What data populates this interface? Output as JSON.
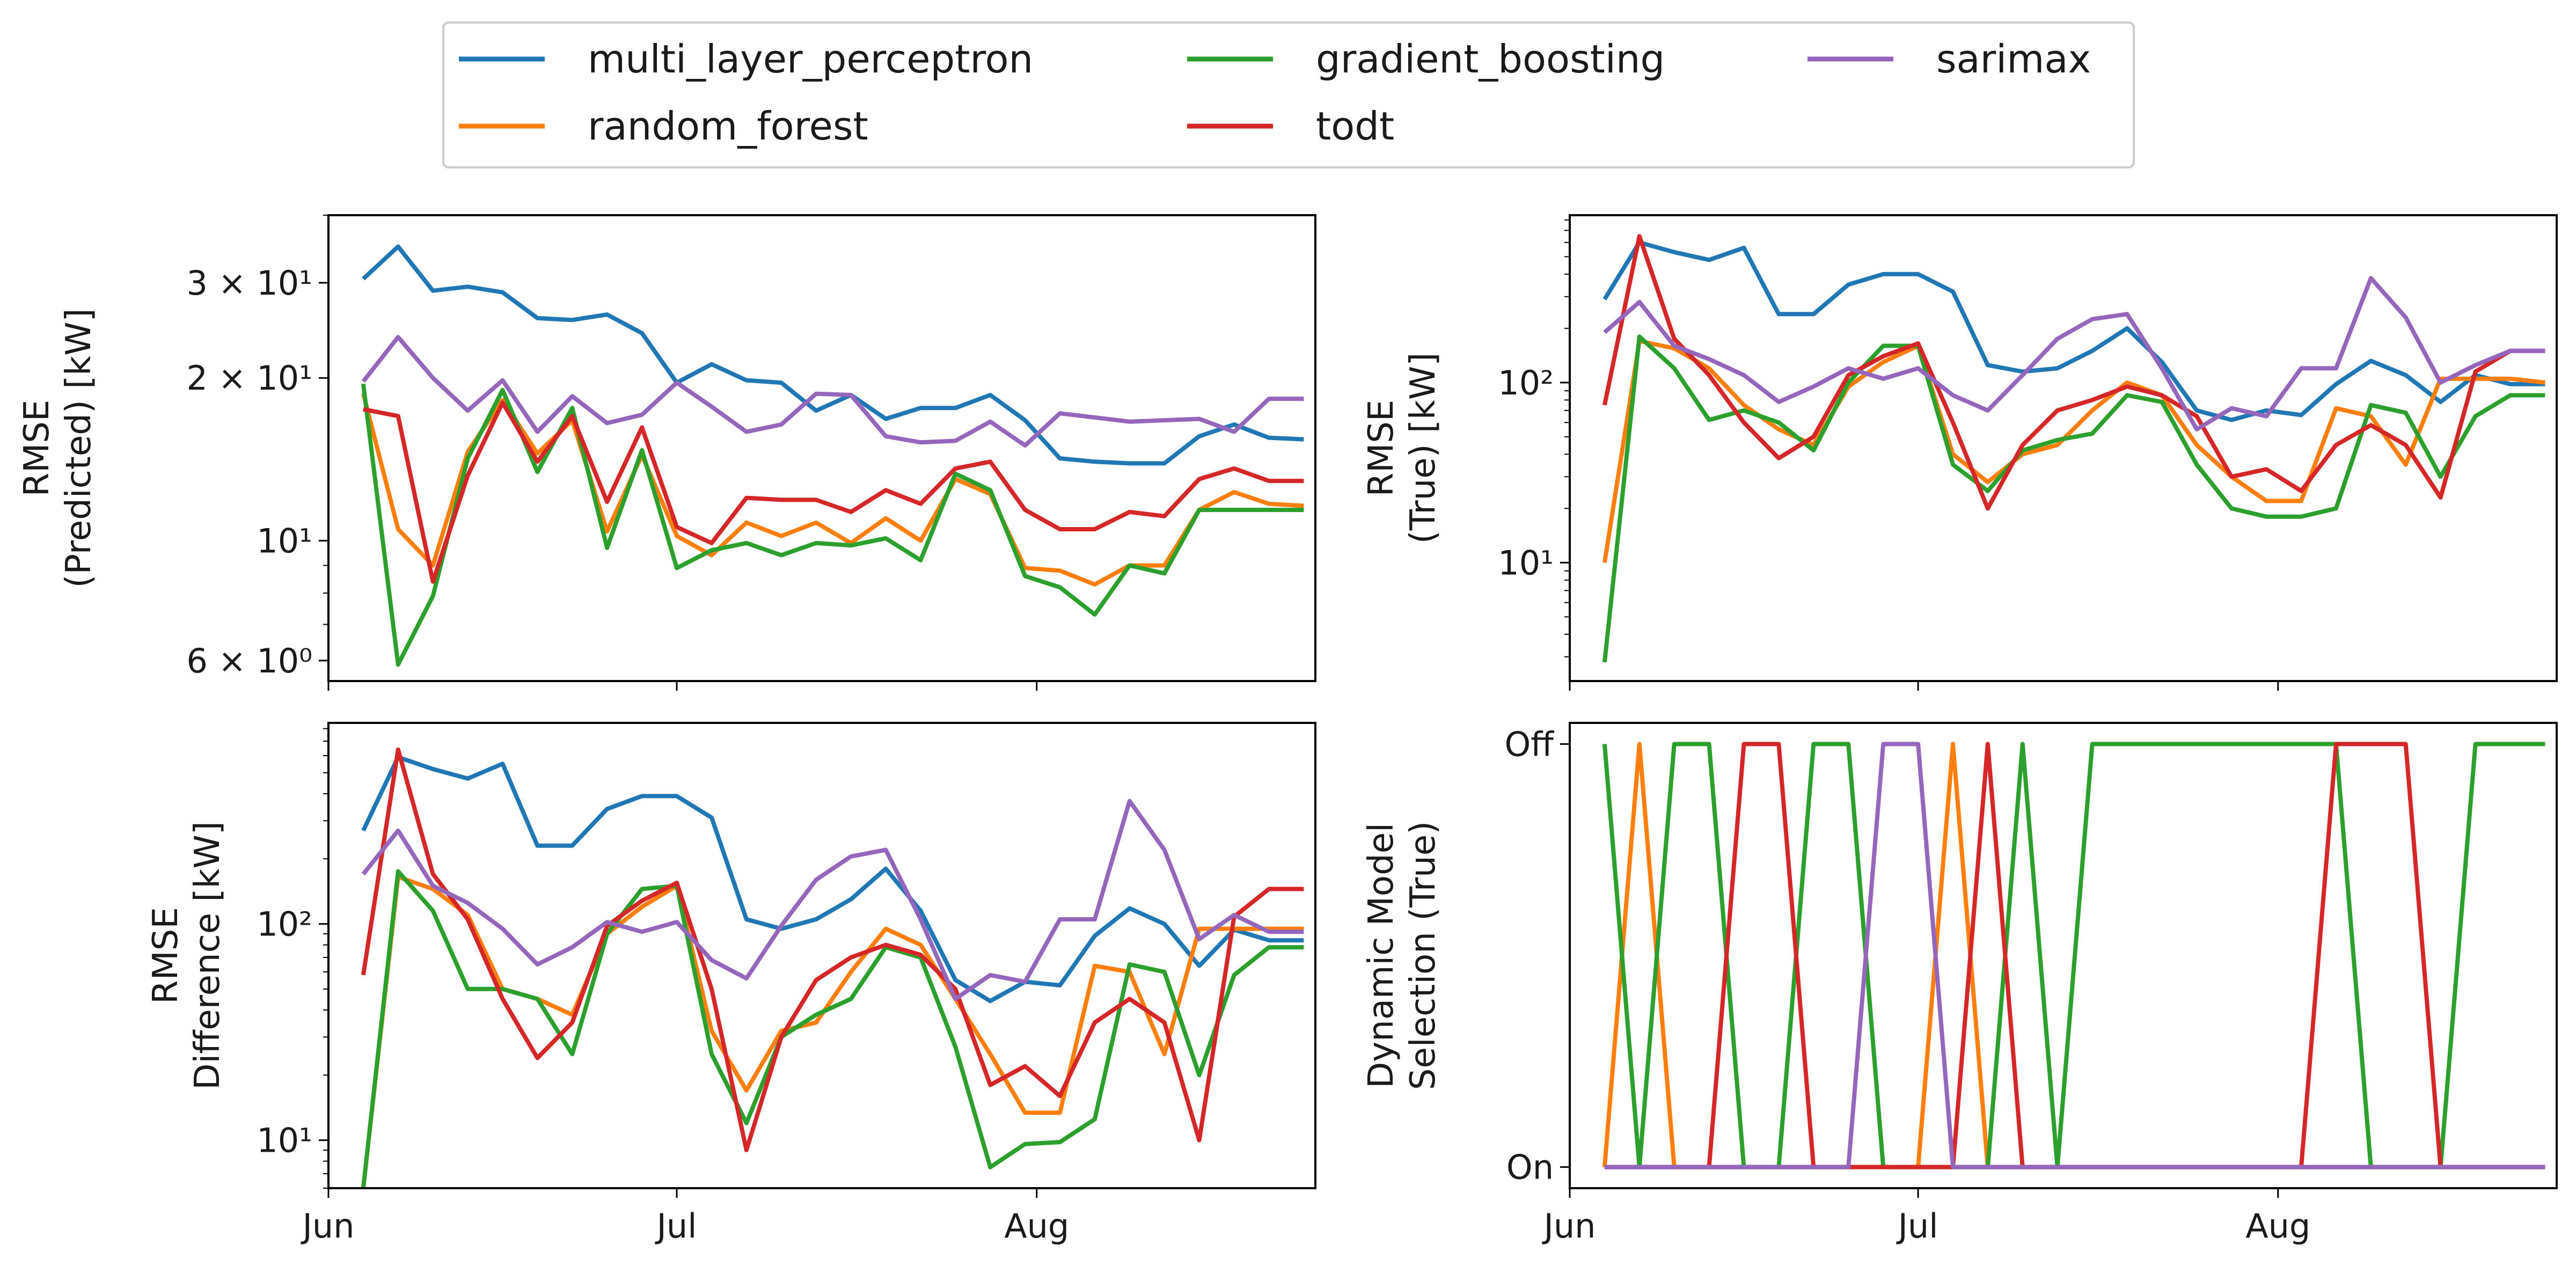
{
  "legend": {
    "entries": [
      {
        "name": "multi_layer_perceptron",
        "color": "#1f77b4"
      },
      {
        "name": "random_forest",
        "color": "#ff7f0e"
      },
      {
        "name": "gradient_boosting",
        "color": "#2ca02c"
      },
      {
        "name": "todt",
        "color": "#d62728"
      },
      {
        "name": "sarimax",
        "color": "#9467bd"
      }
    ]
  },
  "x_axis": {
    "ticks": [
      {
        "date": "2023-06-01",
        "label": "Jun"
      },
      {
        "date": "2023-07-01",
        "label": "Jul"
      },
      {
        "date": "2023-08-01",
        "label": "Aug"
      }
    ]
  },
  "chart_data": [
    {
      "id": "predicted",
      "type": "line",
      "ylabel": [
        "RMSE",
        "(Predicted) [kW]"
      ],
      "yscale": "log",
      "ylim": [
        5.5,
        40
      ],
      "xlim": [
        "2023-06-01",
        "2023-08-25"
      ],
      "yticks": [
        {
          "value": 6,
          "label": "6 × 10⁰"
        },
        {
          "value": 10,
          "label": "10¹"
        },
        {
          "value": 20,
          "label": "2 × 10¹"
        },
        {
          "value": 30,
          "label": "3 × 10¹"
        }
      ],
      "x": [
        "2023-06-04",
        "2023-06-07",
        "2023-06-10",
        "2023-06-13",
        "2023-06-16",
        "2023-06-19",
        "2023-06-22",
        "2023-06-25",
        "2023-06-28",
        "2023-07-01",
        "2023-07-04",
        "2023-07-07",
        "2023-07-10",
        "2023-07-13",
        "2023-07-16",
        "2023-07-19",
        "2023-07-22",
        "2023-07-25",
        "2023-07-28",
        "2023-07-31",
        "2023-08-03",
        "2023-08-06",
        "2023-08-09",
        "2023-08-12",
        "2023-08-15",
        "2023-08-18",
        "2023-08-21",
        "2023-08-24"
      ],
      "series": [
        {
          "name": "multi_layer_perceptron",
          "values": [
            30.5,
            35,
            29,
            29.5,
            28.8,
            25.8,
            25.6,
            26.2,
            24.2,
            19.6,
            21.2,
            19.8,
            19.6,
            17.4,
            18.6,
            16.8,
            17.6,
            17.6,
            18.6,
            16.7,
            14.2,
            14,
            13.9,
            13.9,
            15.6,
            16.4,
            15.5,
            15.4
          ]
        },
        {
          "name": "random_forest",
          "values": [
            18.7,
            10.5,
            9,
            14.6,
            18.2,
            14.5,
            16.7,
            10.4,
            14.4,
            10.2,
            9.4,
            10.8,
            10.2,
            10.8,
            9.9,
            11,
            10,
            13,
            12.2,
            8.9,
            8.8,
            8.3,
            9,
            9,
            11.4,
            12.3,
            11.7,
            11.6
          ]
        },
        {
          "name": "gradient_boosting",
          "values": [
            19.5,
            5.9,
            7.9,
            14.2,
            19,
            13.4,
            17.6,
            9.7,
            14.7,
            8.9,
            9.6,
            9.9,
            9.4,
            9.9,
            9.8,
            10.1,
            9.2,
            13.3,
            12.4,
            8.6,
            8.2,
            7.3,
            9,
            8.7,
            11.4,
            11.4,
            11.4,
            11.4
          ]
        },
        {
          "name": "todt",
          "values": [
            17.5,
            17,
            8.4,
            13.2,
            18,
            14,
            17,
            11.8,
            16.2,
            10.6,
            9.9,
            12,
            11.9,
            11.9,
            11.3,
            12.4,
            11.7,
            13.6,
            14,
            11.4,
            10.5,
            10.5,
            11.3,
            11.1,
            13,
            13.6,
            12.9,
            12.9
          ]
        },
        {
          "name": "sarimax",
          "values": [
            19.7,
            23.8,
            20,
            17.4,
            19.8,
            15.9,
            18.5,
            16.5,
            17.1,
            19.6,
            17.7,
            15.9,
            16.4,
            18.7,
            18.6,
            15.6,
            15.2,
            15.3,
            16.6,
            15,
            17.2,
            16.9,
            16.6,
            16.7,
            16.8,
            15.9,
            18.3,
            18.3
          ]
        }
      ]
    },
    {
      "id": "true",
      "type": "line",
      "ylabel": [
        "RMSE",
        "(True) [kW]"
      ],
      "yscale": "log",
      "ylim": [
        2.2,
        850
      ],
      "xlim": [
        "2023-06-01",
        "2023-08-25"
      ],
      "yticks": [
        {
          "value": 10,
          "label": "10¹"
        },
        {
          "value": 100,
          "label": "10²"
        }
      ],
      "x": [
        "2023-06-04",
        "2023-06-07",
        "2023-06-10",
        "2023-06-13",
        "2023-06-16",
        "2023-06-19",
        "2023-06-22",
        "2023-06-25",
        "2023-06-28",
        "2023-07-01",
        "2023-07-04",
        "2023-07-07",
        "2023-07-10",
        "2023-07-13",
        "2023-07-16",
        "2023-07-19",
        "2023-07-22",
        "2023-07-25",
        "2023-07-28",
        "2023-07-31",
        "2023-08-03",
        "2023-08-06",
        "2023-08-09",
        "2023-08-12",
        "2023-08-15",
        "2023-08-18",
        "2023-08-21",
        "2023-08-24"
      ],
      "series": [
        {
          "name": "multi_layer_perceptron",
          "values": [
            290,
            600,
            530,
            480,
            560,
            240,
            240,
            350,
            400,
            400,
            320,
            125,
            115,
            120,
            150,
            200,
            130,
            70,
            62,
            70,
            66,
            98,
            132,
            110,
            78,
            110,
            98,
            98
          ]
        },
        {
          "name": "random_forest",
          "values": [
            10,
            170,
            155,
            120,
            75,
            55,
            45,
            95,
            130,
            160,
            40,
            28,
            40,
            45,
            70,
            100,
            85,
            45,
            30,
            22,
            22,
            72,
            65,
            35,
            105,
            105,
            105,
            100
          ]
        },
        {
          "name": "gradient_boosting",
          "values": [
            2.8,
            180,
            120,
            62,
            70,
            60,
            42,
            100,
            160,
            160,
            35,
            25,
            42,
            48,
            52,
            85,
            78,
            35,
            20,
            18,
            18,
            20,
            75,
            68,
            30,
            65,
            85,
            85
          ]
        },
        {
          "name": "todt",
          "values": [
            75,
            650,
            175,
            110,
            60,
            38,
            50,
            110,
            140,
            165,
            60,
            20,
            45,
            70,
            80,
            95,
            85,
            65,
            30,
            33,
            25,
            45,
            58,
            45,
            23,
            115,
            150,
            150
          ]
        },
        {
          "name": "sarimax",
          "values": [
            190,
            280,
            160,
            135,
            110,
            78,
            95,
            120,
            105,
            120,
            85,
            70,
            110,
            175,
            225,
            240,
            120,
            55,
            72,
            65,
            120,
            120,
            380,
            230,
            100,
            125,
            150,
            150
          ]
        }
      ]
    },
    {
      "id": "difference",
      "type": "line",
      "ylabel": [
        "RMSE",
        "Difference [kW]"
      ],
      "yscale": "log",
      "ylim": [
        6,
        850
      ],
      "xlim": [
        "2023-06-01",
        "2023-08-25"
      ],
      "yticks": [
        {
          "value": 10,
          "label": "10¹"
        },
        {
          "value": 100,
          "label": "10²"
        }
      ],
      "x": [
        "2023-06-04",
        "2023-06-07",
        "2023-06-10",
        "2023-06-13",
        "2023-06-16",
        "2023-06-19",
        "2023-06-22",
        "2023-06-25",
        "2023-06-28",
        "2023-07-01",
        "2023-07-04",
        "2023-07-07",
        "2023-07-10",
        "2023-07-13",
        "2023-07-16",
        "2023-07-19",
        "2023-07-22",
        "2023-07-25",
        "2023-07-28",
        "2023-07-31",
        "2023-08-03",
        "2023-08-06",
        "2023-08-09",
        "2023-08-12",
        "2023-08-15",
        "2023-08-18",
        "2023-08-21",
        "2023-08-24"
      ],
      "series": [
        {
          "name": "multi_layer_perceptron",
          "values": [
            270,
            590,
            520,
            470,
            550,
            230,
            230,
            340,
            390,
            390,
            310,
            105,
            95,
            105,
            130,
            180,
            115,
            55,
            44,
            54,
            52,
            88,
            118,
            100,
            64,
            94,
            84,
            84
          ]
        },
        {
          "name": "random_forest",
          "values": [
            6,
            165,
            145,
            110,
            50,
            45,
            38,
            90,
            120,
            150,
            32,
            17,
            32,
            35,
            60,
            95,
            80,
            45,
            25,
            13.4,
            13.4,
            64,
            60,
            25,
            95,
            95,
            95,
            95
          ]
        },
        {
          "name": "gradient_boosting",
          "values": [
            6,
            175,
            115,
            50,
            50,
            45,
            25,
            90,
            145,
            150,
            25,
            12,
            30,
            38,
            45,
            78,
            70,
            27,
            7.5,
            9.6,
            9.8,
            12.5,
            65,
            60,
            20,
            58,
            78,
            78
          ]
        },
        {
          "name": "todt",
          "values": [
            58,
            640,
            170,
            105,
            45,
            24,
            35,
            98,
            128,
            155,
            50,
            9,
            30,
            55,
            70,
            80,
            72,
            50,
            18,
            22,
            16,
            35,
            45,
            35,
            10,
            108,
            145,
            145
          ]
        },
        {
          "name": "sarimax",
          "values": [
            170,
            270,
            150,
            125,
            95,
            65,
            78,
            102,
            92,
            102,
            68,
            56,
            98,
            160,
            205,
            220,
            105,
            45,
            58,
            54,
            105,
            105,
            370,
            220,
            85,
            110,
            92,
            92
          ]
        }
      ]
    },
    {
      "id": "selection",
      "type": "line",
      "ylabel": [
        "Dynamic Model",
        "Selection (True)"
      ],
      "yscale": "linear",
      "ylim": [
        -0.05,
        1.05
      ],
      "xlim": [
        "2023-06-01",
        "2023-08-25"
      ],
      "yticks": [
        {
          "value": 0,
          "label": "On"
        },
        {
          "value": 1,
          "label": "Off"
        }
      ],
      "x": [
        "2023-06-04",
        "2023-06-07",
        "2023-06-10",
        "2023-06-13",
        "2023-06-16",
        "2023-06-19",
        "2023-06-22",
        "2023-06-25",
        "2023-06-28",
        "2023-07-01",
        "2023-07-04",
        "2023-07-07",
        "2023-07-10",
        "2023-07-13",
        "2023-07-16",
        "2023-07-19",
        "2023-07-22",
        "2023-07-25",
        "2023-07-28",
        "2023-07-31",
        "2023-08-03",
        "2023-08-06",
        "2023-08-09",
        "2023-08-12",
        "2023-08-15",
        "2023-08-18",
        "2023-08-21",
        "2023-08-24"
      ],
      "series": [
        {
          "name": "multi_layer_perceptron",
          "values": [
            0,
            0,
            0,
            0,
            0,
            0,
            0,
            0,
            0,
            0,
            0,
            0,
            0,
            0,
            0,
            0,
            0,
            0,
            0,
            0,
            0,
            0,
            0,
            0,
            0,
            0,
            0,
            0
          ]
        },
        {
          "name": "random_forest",
          "values": [
            0,
            1,
            0,
            0,
            0,
            0,
            0,
            0,
            0,
            0,
            1,
            0,
            0,
            0,
            0,
            0,
            0,
            0,
            0,
            0,
            0,
            0,
            0,
            0,
            0,
            0,
            0,
            0
          ]
        },
        {
          "name": "gradient_boosting",
          "values": [
            1,
            0,
            1,
            1,
            0,
            0,
            1,
            1,
            0,
            0,
            0,
            0,
            1,
            0,
            1,
            1,
            1,
            1,
            1,
            1,
            1,
            1,
            0,
            0,
            0,
            1,
            1,
            1
          ]
        },
        {
          "name": "todt",
          "values": [
            0,
            0,
            0,
            0,
            1,
            1,
            0,
            0,
            0,
            0,
            0,
            1,
            0,
            0,
            0,
            0,
            0,
            0,
            0,
            0,
            0,
            1,
            1,
            1,
            0,
            0,
            0,
            0
          ]
        },
        {
          "name": "sarimax",
          "values": [
            0,
            0,
            0,
            0,
            0,
            0,
            0,
            0,
            1,
            1,
            0,
            0,
            0,
            0,
            0,
            0,
            0,
            0,
            0,
            0,
            0,
            0,
            0,
            0,
            0,
            0,
            0,
            0
          ]
        }
      ]
    }
  ]
}
